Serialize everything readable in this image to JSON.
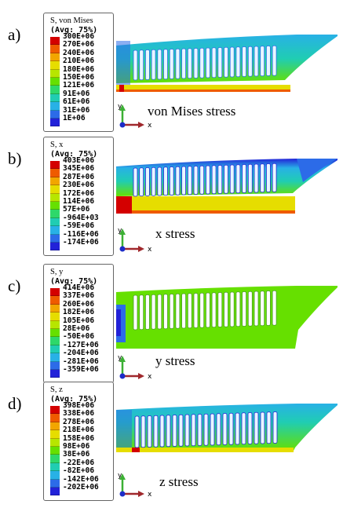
{
  "colormap": [
    "#d40000",
    "#ef5b00",
    "#f2a600",
    "#e6dd00",
    "#b7e600",
    "#66e000",
    "#2ed86a",
    "#20cdb2",
    "#28b1e6",
    "#2c6be8",
    "#2222d8"
  ],
  "triad": {
    "y_label": "y",
    "x_label": "x"
  },
  "panels": [
    {
      "letter": "a)",
      "title": "S, von Mises",
      "avg": "(Avg: 75%)",
      "ticks": [
        "300E+06",
        "270E+06",
        "240E+06",
        "210E+06",
        "180E+06",
        "150E+06",
        "121E+06",
        "91E+06",
        "61E+06",
        "31E+06",
        "1E+06"
      ],
      "caption": "von Mises stress"
    },
    {
      "letter": "b)",
      "title": "S, x",
      "avg": "(Avg: 75%)",
      "ticks": [
        "403E+06",
        "345E+06",
        "287E+06",
        "230E+06",
        "172E+06",
        "114E+06",
        "57E+06",
        "-964E+03",
        "-59E+06",
        "-116E+06",
        "-174E+06"
      ],
      "caption": "x stress"
    },
    {
      "letter": "c)",
      "title": "S, y",
      "avg": "(Avg: 75%)",
      "ticks": [
        "414E+06",
        "337E+06",
        "260E+06",
        "182E+06",
        "105E+06",
        "28E+06",
        "-50E+06",
        "-127E+06",
        "-204E+06",
        "-281E+06",
        "-359E+06"
      ],
      "caption": "y stress"
    },
    {
      "letter": "d)",
      "title": "S, z",
      "avg": "(Avg: 75%)",
      "ticks": [
        "398E+06",
        "338E+06",
        "278E+06",
        "218E+06",
        "158E+06",
        "98E+06",
        "38E+06",
        "-22E+06",
        "-82E+06",
        "-142E+06",
        "-202E+06"
      ],
      "caption": "z stress"
    }
  ]
}
